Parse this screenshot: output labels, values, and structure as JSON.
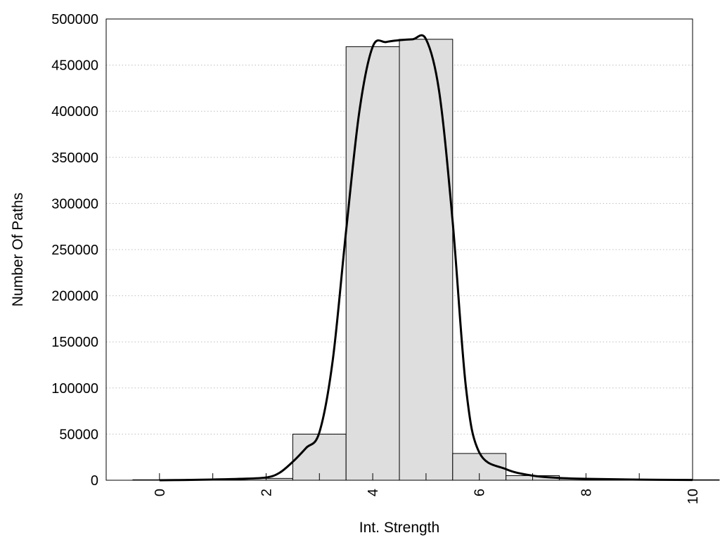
{
  "chart_data": {
    "type": "bar",
    "title": "",
    "xlabel": "Int. Strength",
    "ylabel": "Number Of Paths",
    "xlim": [
      -1,
      10
    ],
    "ylim": [
      0,
      500000
    ],
    "x_ticks": [
      "0",
      "2",
      "4",
      "6",
      "8",
      "10"
    ],
    "y_ticks": [
      "0",
      "50000",
      "100000",
      "150000",
      "200000",
      "250000",
      "300000",
      "350000",
      "400000",
      "450000",
      "500000"
    ],
    "grid": "horizontal dotted",
    "bar_color": "#dedede",
    "bins": [
      {
        "center": 0,
        "value": 500
      },
      {
        "center": 1,
        "value": 800
      },
      {
        "center": 2,
        "value": 2000
      },
      {
        "center": 3,
        "value": 50000
      },
      {
        "center": 4,
        "value": 470000
      },
      {
        "center": 5,
        "value": 478000
      },
      {
        "center": 6,
        "value": 29000
      },
      {
        "center": 7,
        "value": 5000
      },
      {
        "center": 8,
        "value": 1500
      },
      {
        "center": 9,
        "value": 800
      },
      {
        "center": 10,
        "value": 500
      }
    ],
    "curve": {
      "x": [
        0,
        0.5,
        1,
        1.5,
        2,
        2.25,
        2.5,
        2.75,
        3,
        3.25,
        3.5,
        3.75,
        4,
        4.25,
        4.5,
        4.75,
        5,
        5.25,
        5.5,
        5.75,
        6,
        6.5,
        7,
        7.5,
        8,
        9,
        10
      ],
      "y": [
        0,
        300,
        800,
        1500,
        3000,
        8000,
        20000,
        35000,
        52000,
        130000,
        270000,
        400000,
        470000,
        475000,
        477000,
        478000,
        478000,
        420000,
        280000,
        100000,
        30000,
        12000,
        5000,
        2500,
        1500,
        700,
        300
      ]
    }
  }
}
